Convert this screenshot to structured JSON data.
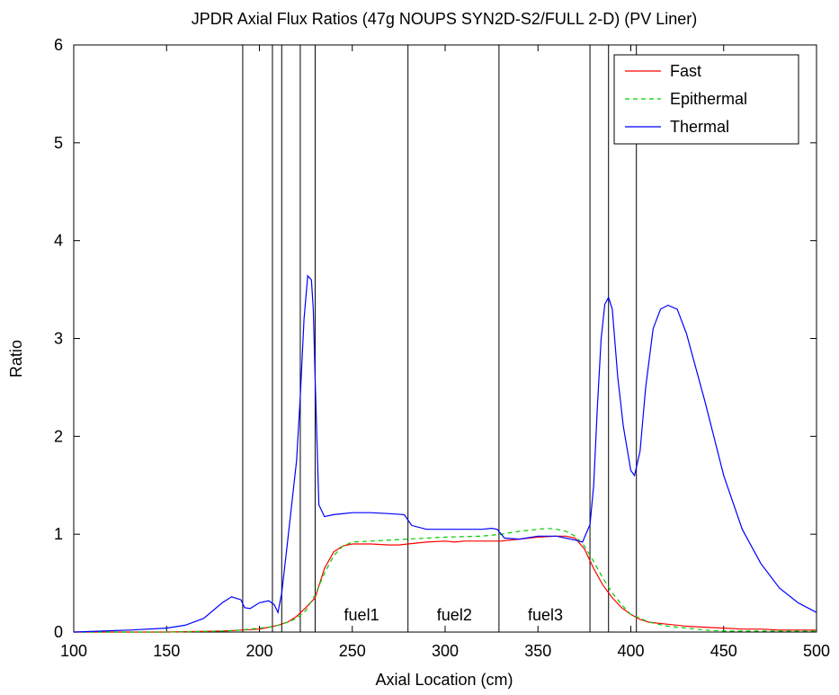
{
  "chart_data": {
    "type": "line",
    "title": "JPDR Axial Flux Ratios (47g NOUPS SYN2D-S2/FULL 2-D) (PV Liner)",
    "xlabel": "Axial Location (cm)",
    "ylabel": "Ratio",
    "xlim": [
      100,
      500
    ],
    "ylim": [
      0,
      6
    ],
    "xticks": [
      100,
      150,
      200,
      250,
      300,
      350,
      400,
      450,
      500
    ],
    "yticks": [
      0,
      1,
      2,
      3,
      4,
      5,
      6
    ],
    "legend_position": "top-right",
    "colors": {
      "Fast": "#ff0000",
      "Epithermal": "#00cc00",
      "Thermal": "#0000ff",
      "boundary": "#000000"
    },
    "vertical_lines": [
      191,
      207,
      212,
      222,
      230,
      280,
      329,
      378,
      388,
      403
    ],
    "annotations": [
      {
        "text": "fuel1",
        "x": 255,
        "y": 0.12
      },
      {
        "text": "fuel2",
        "x": 305,
        "y": 0.12
      },
      {
        "text": "fuel3",
        "x": 354,
        "y": 0.12
      }
    ],
    "series": [
      {
        "name": "Fast",
        "style": "solid",
        "x": [
          100,
          150,
          180,
          190,
          200,
          205,
          210,
          215,
          220,
          225,
          230,
          235,
          240,
          245,
          250,
          260,
          270,
          275,
          280,
          290,
          300,
          305,
          310,
          320,
          330,
          340,
          350,
          360,
          365,
          370,
          375,
          380,
          385,
          390,
          395,
          400,
          405,
          410,
          420,
          430,
          440,
          450,
          460,
          470,
          480,
          490,
          500
        ],
        "y": [
          0.0,
          0.0,
          0.01,
          0.02,
          0.03,
          0.05,
          0.07,
          0.1,
          0.16,
          0.25,
          0.35,
          0.65,
          0.82,
          0.88,
          0.9,
          0.9,
          0.89,
          0.89,
          0.9,
          0.92,
          0.93,
          0.92,
          0.93,
          0.93,
          0.93,
          0.95,
          0.97,
          0.98,
          0.98,
          0.96,
          0.85,
          0.65,
          0.48,
          0.35,
          0.25,
          0.18,
          0.13,
          0.1,
          0.08,
          0.06,
          0.05,
          0.04,
          0.03,
          0.03,
          0.02,
          0.02,
          0.02
        ]
      },
      {
        "name": "Epithermal",
        "style": "dashed",
        "x": [
          100,
          150,
          180,
          190,
          200,
          205,
          210,
          215,
          220,
          225,
          230,
          235,
          240,
          245,
          250,
          260,
          280,
          300,
          320,
          330,
          340,
          350,
          355,
          360,
          365,
          370,
          375,
          380,
          385,
          390,
          395,
          400,
          410,
          420,
          430,
          440,
          450,
          470,
          500
        ],
        "y": [
          0.0,
          0.0,
          0.01,
          0.02,
          0.04,
          0.05,
          0.07,
          0.1,
          0.14,
          0.22,
          0.38,
          0.6,
          0.78,
          0.88,
          0.92,
          0.93,
          0.95,
          0.97,
          0.98,
          1.0,
          1.03,
          1.05,
          1.06,
          1.05,
          1.03,
          0.98,
          0.88,
          0.72,
          0.55,
          0.4,
          0.28,
          0.18,
          0.1,
          0.06,
          0.04,
          0.02,
          0.01,
          0.01,
          0.01
        ]
      },
      {
        "name": "Thermal",
        "style": "solid",
        "x": [
          100,
          130,
          150,
          160,
          170,
          180,
          185,
          190,
          192,
          195,
          200,
          205,
          208,
          210,
          212,
          215,
          220,
          222,
          224,
          226,
          228,
          229,
          230,
          232,
          235,
          240,
          250,
          260,
          270,
          278,
          282,
          290,
          300,
          320,
          325,
          328,
          332,
          340,
          350,
          360,
          365,
          370,
          374,
          378,
          380,
          382,
          384,
          386,
          388,
          390,
          393,
          396,
          400,
          402,
          405,
          408,
          412,
          416,
          420,
          425,
          430,
          440,
          450,
          460,
          470,
          480,
          490,
          500
        ],
        "y": [
          0.0,
          0.02,
          0.04,
          0.07,
          0.14,
          0.3,
          0.36,
          0.33,
          0.25,
          0.24,
          0.3,
          0.32,
          0.28,
          0.2,
          0.4,
          0.9,
          1.75,
          2.4,
          3.2,
          3.64,
          3.6,
          3.3,
          2.6,
          1.3,
          1.18,
          1.2,
          1.22,
          1.22,
          1.21,
          1.2,
          1.09,
          1.05,
          1.05,
          1.05,
          1.06,
          1.05,
          0.96,
          0.95,
          0.98,
          0.98,
          0.96,
          0.94,
          0.92,
          1.1,
          1.5,
          2.3,
          3.0,
          3.35,
          3.42,
          3.3,
          2.6,
          2.1,
          1.65,
          1.6,
          1.85,
          2.5,
          3.1,
          3.3,
          3.34,
          3.3,
          3.05,
          2.35,
          1.6,
          1.05,
          0.7,
          0.45,
          0.3,
          0.2
        ]
      }
    ]
  }
}
